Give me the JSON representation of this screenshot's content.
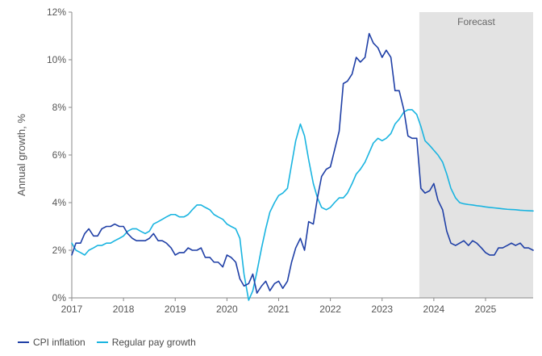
{
  "chart_data": {
    "type": "line",
    "ylabel": "Annual growth, %",
    "ylim": [
      0,
      12
    ],
    "yticks": [
      "0%",
      "2%",
      "4%",
      "6%",
      "8%",
      "10%",
      "12%"
    ],
    "xlim": [
      2017,
      2025.92
    ],
    "xticks": [
      "2017",
      "2018",
      "2019",
      "2020",
      "2021",
      "2022",
      "2023",
      "2024",
      "2025"
    ],
    "forecast": {
      "label": "Forecast",
      "from": 2023.72,
      "to": 2025.92,
      "color": "#e3e3e3"
    },
    "grid": false,
    "legend": "bottom-left",
    "series": [
      {
        "name": "CPI inflation",
        "color": "#1f3fa6",
        "points": [
          [
            2017.0,
            1.8
          ],
          [
            2017.08,
            2.3
          ],
          [
            2017.17,
            2.3
          ],
          [
            2017.25,
            2.7
          ],
          [
            2017.33,
            2.9
          ],
          [
            2017.42,
            2.6
          ],
          [
            2017.5,
            2.6
          ],
          [
            2017.58,
            2.9
          ],
          [
            2017.67,
            3.0
          ],
          [
            2017.75,
            3.0
          ],
          [
            2017.83,
            3.1
          ],
          [
            2017.92,
            3.0
          ],
          [
            2018.0,
            3.0
          ],
          [
            2018.08,
            2.7
          ],
          [
            2018.17,
            2.5
          ],
          [
            2018.25,
            2.4
          ],
          [
            2018.33,
            2.4
          ],
          [
            2018.42,
            2.4
          ],
          [
            2018.5,
            2.5
          ],
          [
            2018.58,
            2.7
          ],
          [
            2018.67,
            2.4
          ],
          [
            2018.75,
            2.4
          ],
          [
            2018.83,
            2.3
          ],
          [
            2018.92,
            2.1
          ],
          [
            2019.0,
            1.8
          ],
          [
            2019.08,
            1.9
          ],
          [
            2019.17,
            1.9
          ],
          [
            2019.25,
            2.1
          ],
          [
            2019.33,
            2.0
          ],
          [
            2019.42,
            2.0
          ],
          [
            2019.5,
            2.1
          ],
          [
            2019.58,
            1.7
          ],
          [
            2019.67,
            1.7
          ],
          [
            2019.75,
            1.5
          ],
          [
            2019.83,
            1.5
          ],
          [
            2019.92,
            1.3
          ],
          [
            2020.0,
            1.8
          ],
          [
            2020.08,
            1.7
          ],
          [
            2020.17,
            1.5
          ],
          [
            2020.25,
            0.8
          ],
          [
            2020.33,
            0.5
          ],
          [
            2020.42,
            0.6
          ],
          [
            2020.5,
            1.0
          ],
          [
            2020.58,
            0.2
          ],
          [
            2020.67,
            0.5
          ],
          [
            2020.75,
            0.7
          ],
          [
            2020.83,
            0.3
          ],
          [
            2020.92,
            0.6
          ],
          [
            2021.0,
            0.7
          ],
          [
            2021.08,
            0.4
          ],
          [
            2021.17,
            0.7
          ],
          [
            2021.25,
            1.5
          ],
          [
            2021.33,
            2.1
          ],
          [
            2021.42,
            2.5
          ],
          [
            2021.5,
            2.0
          ],
          [
            2021.58,
            3.2
          ],
          [
            2021.67,
            3.1
          ],
          [
            2021.75,
            4.2
          ],
          [
            2021.83,
            5.1
          ],
          [
            2021.92,
            5.4
          ],
          [
            2022.0,
            5.5
          ],
          [
            2022.08,
            6.2
          ],
          [
            2022.17,
            7.0
          ],
          [
            2022.25,
            9.0
          ],
          [
            2022.33,
            9.1
          ],
          [
            2022.42,
            9.4
          ],
          [
            2022.5,
            10.1
          ],
          [
            2022.58,
            9.9
          ],
          [
            2022.67,
            10.1
          ],
          [
            2022.75,
            11.1
          ],
          [
            2022.83,
            10.7
          ],
          [
            2022.92,
            10.5
          ],
          [
            2023.0,
            10.1
          ],
          [
            2023.08,
            10.4
          ],
          [
            2023.17,
            10.1
          ],
          [
            2023.25,
            8.7
          ],
          [
            2023.33,
            8.7
          ],
          [
            2023.42,
            7.9
          ],
          [
            2023.5,
            6.8
          ],
          [
            2023.58,
            6.7
          ],
          [
            2023.67,
            6.7
          ],
          [
            2023.75,
            4.6
          ],
          [
            2023.83,
            4.4
          ],
          [
            2023.92,
            4.5
          ],
          [
            2024.0,
            4.8
          ],
          [
            2024.08,
            4.1
          ],
          [
            2024.17,
            3.7
          ],
          [
            2024.25,
            2.8
          ],
          [
            2024.33,
            2.3
          ],
          [
            2024.42,
            2.2
          ],
          [
            2024.5,
            2.3
          ],
          [
            2024.58,
            2.4
          ],
          [
            2024.67,
            2.2
          ],
          [
            2024.75,
            2.4
          ],
          [
            2024.83,
            2.3
          ],
          [
            2024.92,
            2.1
          ],
          [
            2025.0,
            1.9
          ],
          [
            2025.08,
            1.8
          ],
          [
            2025.17,
            1.8
          ],
          [
            2025.25,
            2.1
          ],
          [
            2025.33,
            2.1
          ],
          [
            2025.42,
            2.2
          ],
          [
            2025.5,
            2.3
          ],
          [
            2025.58,
            2.2
          ],
          [
            2025.67,
            2.3
          ],
          [
            2025.75,
            2.1
          ],
          [
            2025.83,
            2.1
          ],
          [
            2025.92,
            2.0
          ]
        ]
      },
      {
        "name": "Regular pay growth",
        "color": "#19b4e0",
        "points": [
          [
            2017.0,
            2.3
          ],
          [
            2017.08,
            2.0
          ],
          [
            2017.17,
            1.9
          ],
          [
            2017.25,
            1.8
          ],
          [
            2017.33,
            2.0
          ],
          [
            2017.42,
            2.1
          ],
          [
            2017.5,
            2.2
          ],
          [
            2017.58,
            2.2
          ],
          [
            2017.67,
            2.3
          ],
          [
            2017.75,
            2.3
          ],
          [
            2017.83,
            2.4
          ],
          [
            2017.92,
            2.5
          ],
          [
            2018.0,
            2.6
          ],
          [
            2018.08,
            2.8
          ],
          [
            2018.17,
            2.9
          ],
          [
            2018.25,
            2.9
          ],
          [
            2018.33,
            2.8
          ],
          [
            2018.42,
            2.7
          ],
          [
            2018.5,
            2.8
          ],
          [
            2018.58,
            3.1
          ],
          [
            2018.67,
            3.2
          ],
          [
            2018.75,
            3.3
          ],
          [
            2018.83,
            3.4
          ],
          [
            2018.92,
            3.5
          ],
          [
            2019.0,
            3.5
          ],
          [
            2019.08,
            3.4
          ],
          [
            2019.17,
            3.4
          ],
          [
            2019.25,
            3.5
          ],
          [
            2019.33,
            3.7
          ],
          [
            2019.42,
            3.9
          ],
          [
            2019.5,
            3.9
          ],
          [
            2019.58,
            3.8
          ],
          [
            2019.67,
            3.7
          ],
          [
            2019.75,
            3.5
          ],
          [
            2019.83,
            3.4
          ],
          [
            2019.92,
            3.3
          ],
          [
            2020.0,
            3.1
          ],
          [
            2020.08,
            3.0
          ],
          [
            2020.17,
            2.9
          ],
          [
            2020.25,
            2.5
          ],
          [
            2020.33,
            1.0
          ],
          [
            2020.42,
            -0.1
          ],
          [
            2020.5,
            0.3
          ],
          [
            2020.58,
            1.1
          ],
          [
            2020.67,
            2.1
          ],
          [
            2020.75,
            2.9
          ],
          [
            2020.83,
            3.6
          ],
          [
            2020.92,
            4.0
          ],
          [
            2021.0,
            4.3
          ],
          [
            2021.08,
            4.4
          ],
          [
            2021.17,
            4.6
          ],
          [
            2021.25,
            5.6
          ],
          [
            2021.33,
            6.6
          ],
          [
            2021.42,
            7.3
          ],
          [
            2021.5,
            6.8
          ],
          [
            2021.58,
            5.8
          ],
          [
            2021.67,
            4.8
          ],
          [
            2021.75,
            4.2
          ],
          [
            2021.83,
            3.8
          ],
          [
            2021.92,
            3.7
          ],
          [
            2022.0,
            3.8
          ],
          [
            2022.08,
            4.0
          ],
          [
            2022.17,
            4.2
          ],
          [
            2022.25,
            4.2
          ],
          [
            2022.33,
            4.4
          ],
          [
            2022.42,
            4.8
          ],
          [
            2022.5,
            5.2
          ],
          [
            2022.58,
            5.4
          ],
          [
            2022.67,
            5.7
          ],
          [
            2022.75,
            6.1
          ],
          [
            2022.83,
            6.5
          ],
          [
            2022.92,
            6.7
          ],
          [
            2023.0,
            6.6
          ],
          [
            2023.08,
            6.7
          ],
          [
            2023.17,
            6.9
          ],
          [
            2023.25,
            7.3
          ],
          [
            2023.33,
            7.5
          ],
          [
            2023.42,
            7.8
          ],
          [
            2023.5,
            7.9
          ],
          [
            2023.58,
            7.9
          ],
          [
            2023.67,
            7.7
          ],
          [
            2023.75,
            7.2
          ],
          [
            2023.83,
            6.6
          ],
          [
            2023.92,
            6.4
          ],
          [
            2024.0,
            6.2
          ],
          [
            2024.08,
            6.0
          ],
          [
            2024.17,
            5.7
          ],
          [
            2024.25,
            5.2
          ],
          [
            2024.33,
            4.6
          ],
          [
            2024.42,
            4.2
          ],
          [
            2024.5,
            4.0
          ],
          [
            2024.58,
            3.95
          ],
          [
            2024.67,
            3.92
          ],
          [
            2024.75,
            3.9
          ],
          [
            2024.83,
            3.87
          ],
          [
            2024.92,
            3.85
          ],
          [
            2025.0,
            3.82
          ],
          [
            2025.08,
            3.8
          ],
          [
            2025.17,
            3.78
          ],
          [
            2025.25,
            3.76
          ],
          [
            2025.33,
            3.74
          ],
          [
            2025.42,
            3.72
          ],
          [
            2025.5,
            3.71
          ],
          [
            2025.58,
            3.7
          ],
          [
            2025.67,
            3.68
          ],
          [
            2025.75,
            3.67
          ],
          [
            2025.83,
            3.66
          ],
          [
            2025.92,
            3.65
          ]
        ]
      }
    ]
  }
}
